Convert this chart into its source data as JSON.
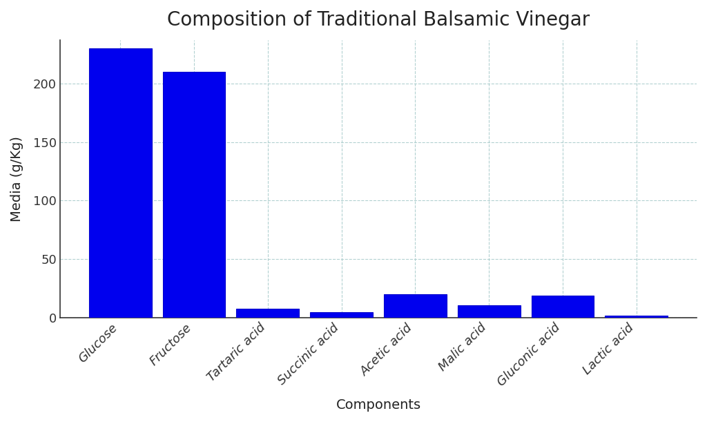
{
  "title": "Composition of Traditional Balsamic Vinegar",
  "xlabel": "Components",
  "ylabel": "Media (g/Kg)",
  "categories": [
    "Glucose",
    "Fructose",
    "Tartaric acid",
    "Succinic acid",
    "Acetic acid",
    "Malic acid",
    "Gluconic acid",
    "Lactic acid"
  ],
  "values": [
    230,
    210,
    8,
    5,
    20,
    11,
    19,
    2
  ],
  "bar_color": "#0000EE",
  "bar_edge_color": "#0000CC",
  "background_color": "#FFFFFF",
  "grid_color": "#AACCCC",
  "title_fontsize": 20,
  "label_fontsize": 14,
  "tick_fontsize": 13,
  "ylim": [
    0,
    237
  ],
  "yticks": [
    0,
    50,
    100,
    150,
    200
  ]
}
